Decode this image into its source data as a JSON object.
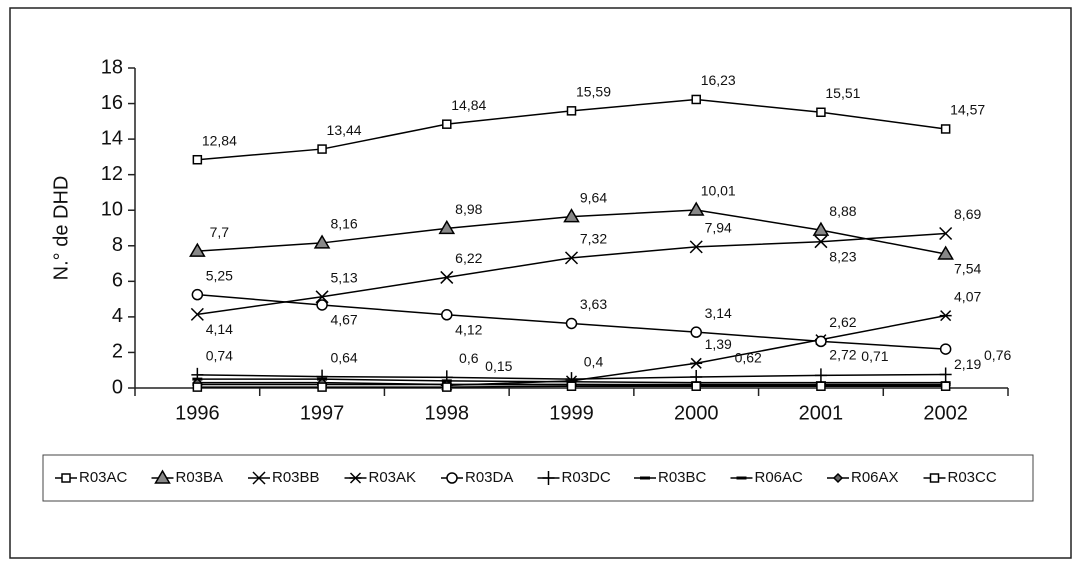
{
  "chart_data": {
    "type": "line",
    "y_label": "N.° de DHD",
    "categories": [
      "1996",
      "1997",
      "1998",
      "1999",
      "2000",
      "2001",
      "2002"
    ],
    "ylim": [
      0,
      18
    ],
    "yticks": [
      0,
      2,
      4,
      6,
      8,
      10,
      12,
      14,
      16,
      18
    ],
    "series": [
      {
        "name": "R03AC",
        "color": "#000000",
        "marker": "square",
        "values": [
          12.84,
          13.44,
          14.84,
          15.59,
          16.23,
          15.51,
          14.57
        ],
        "value_labels": [
          "12,84",
          "13,44",
          "14,84",
          "15,59",
          "16,23",
          "15,51",
          "14,57"
        ]
      },
      {
        "name": "R03BA",
        "color": "#000000",
        "marker": "triangle",
        "values": [
          7.7,
          8.16,
          8.98,
          9.64,
          10.01,
          8.88,
          7.54
        ],
        "value_labels": [
          "7,7",
          "8,16",
          "8,98",
          "9,64",
          "10,01",
          "8,88",
          "7,54"
        ]
      },
      {
        "name": "R03BB",
        "color": "#000000",
        "marker": "x",
        "values": [
          4.14,
          5.13,
          6.22,
          7.32,
          7.94,
          8.23,
          8.69
        ],
        "value_labels": [
          "4,14",
          "5,13",
          "6,22",
          "7,32",
          "7,94",
          "8,23",
          "8,69"
        ]
      },
      {
        "name": "R03AK",
        "color": "#000000",
        "marker": "asterisk",
        "values": [
          null,
          null,
          0.15,
          0.4,
          1.39,
          2.72,
          4.07
        ],
        "value_labels": [
          null,
          null,
          "0,15",
          "0,4",
          "1,39",
          "2,72",
          "4,07"
        ]
      },
      {
        "name": "R03DA",
        "color": "#000000",
        "marker": "circle",
        "values": [
          5.25,
          4.67,
          4.12,
          3.63,
          3.14,
          2.62,
          2.19
        ],
        "value_labels": [
          "5,25",
          "4,67",
          "4,12",
          "3,63",
          "3,14",
          "2,62",
          "2,19"
        ]
      },
      {
        "name": "R03DC",
        "color": "#000000",
        "marker": "plus",
        "values": [
          0.74,
          0.64,
          0.6,
          0.5,
          0.62,
          0.71,
          0.76
        ],
        "value_labels": [
          "0,74",
          "0,64",
          "0,6",
          null,
          "0,62",
          "0,71",
          "0,76"
        ]
      },
      {
        "name": "R03BC",
        "color": "#000000",
        "marker": "dash",
        "values": [
          0.5,
          0.5,
          0.4,
          0.35,
          0.3,
          0.3,
          0.3
        ]
      },
      {
        "name": "R06AC",
        "color": "#000000",
        "marker": "dash",
        "values": [
          0.2,
          0.2,
          0.2,
          0.2,
          0.2,
          0.2,
          0.2
        ]
      },
      {
        "name": "R06AX",
        "color": "#000000",
        "marker": "diamond",
        "values": [
          0.3,
          0.3,
          0.2,
          0.2,
          0.15,
          0.15,
          0.15
        ]
      },
      {
        "name": "R03CC",
        "color": "#000000",
        "marker": "square",
        "values": [
          0.05,
          0.05,
          0.05,
          0.1,
          0.1,
          0.1,
          0.1
        ]
      }
    ]
  }
}
